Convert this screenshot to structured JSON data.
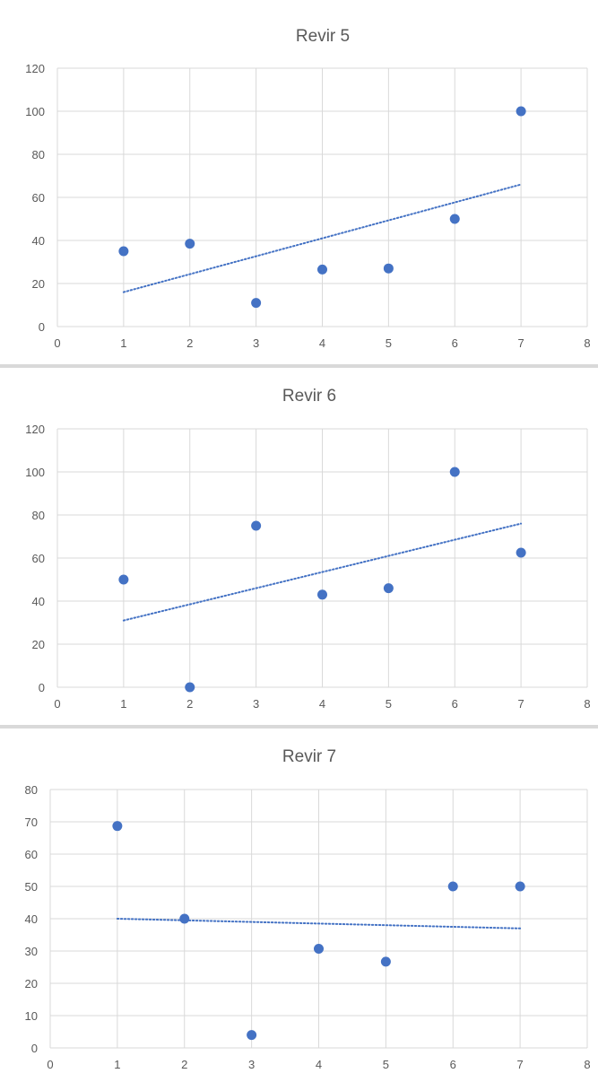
{
  "chart_data": [
    {
      "type": "scatter",
      "title": "Revir 5",
      "x": [
        1,
        2,
        3,
        4,
        5,
        6,
        7
      ],
      "y": [
        35,
        38.5,
        11,
        26.5,
        27,
        50,
        100
      ],
      "xlim": [
        0,
        8
      ],
      "ylim": [
        0,
        120
      ],
      "xticks": [
        0,
        1,
        2,
        3,
        4,
        5,
        6,
        7,
        8
      ],
      "yticks": [
        0,
        20,
        40,
        60,
        80,
        100,
        120
      ],
      "trendline": {
        "type": "linear",
        "x": [
          1,
          7
        ],
        "y": [
          16,
          66
        ]
      },
      "grid": true,
      "color": "#4472c4"
    },
    {
      "type": "scatter",
      "title": "Revir 6",
      "x": [
        1,
        2,
        3,
        4,
        5,
        6,
        7
      ],
      "y": [
        50,
        0,
        75,
        43,
        46,
        100,
        62.5
      ],
      "xlim": [
        0,
        8
      ],
      "ylim": [
        0,
        120
      ],
      "xticks": [
        0,
        1,
        2,
        3,
        4,
        5,
        6,
        7,
        8
      ],
      "yticks": [
        0,
        20,
        40,
        60,
        80,
        100,
        120
      ],
      "trendline": {
        "type": "linear",
        "x": [
          1,
          7
        ],
        "y": [
          31,
          76
        ]
      },
      "grid": true,
      "color": "#4472c4"
    },
    {
      "type": "scatter",
      "title": "Revir 7",
      "x": [
        1,
        2,
        3,
        4,
        5,
        6,
        7
      ],
      "y": [
        68.7,
        40,
        4,
        30.7,
        26.7,
        50,
        50
      ],
      "xlim": [
        0,
        8
      ],
      "ylim": [
        0,
        80
      ],
      "xticks": [
        0,
        1,
        2,
        3,
        4,
        5,
        6,
        7,
        8
      ],
      "yticks": [
        0,
        10,
        20,
        30,
        40,
        50,
        60,
        70,
        80
      ],
      "trendline": {
        "type": "linear",
        "x": [
          1,
          7
        ],
        "y": [
          40,
          37
        ]
      },
      "grid": true,
      "color": "#4472c4"
    }
  ]
}
